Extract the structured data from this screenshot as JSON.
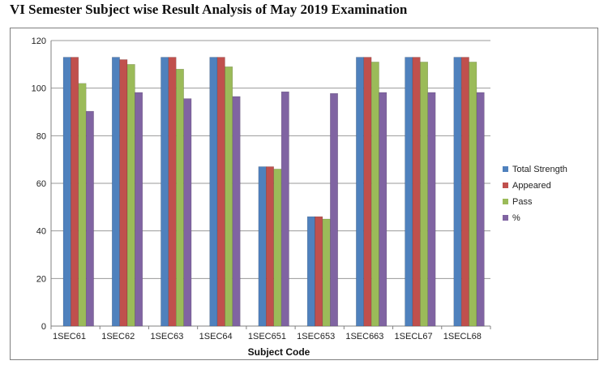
{
  "title": "VI Semester Subject wise Result Analysis of May 2019 Examination",
  "chart_data": {
    "type": "bar",
    "xlabel": "Subject Code",
    "ylabel": "",
    "ylim": [
      0,
      120
    ],
    "yticks": [
      0,
      20,
      40,
      60,
      80,
      100,
      120
    ],
    "grid": true,
    "legend_position": "right",
    "categories": [
      "1SEC61",
      "1SEC62",
      "1SEC63",
      "1SEC64",
      "1SEC651",
      "1SEC653",
      "1SEC663",
      "1SECL67",
      "1SECL68"
    ],
    "series": [
      {
        "name": "Total Strength",
        "color": "#4f81bd",
        "values": [
          113,
          113,
          113,
          113,
          67,
          46,
          113,
          113,
          113
        ]
      },
      {
        "name": "Appeared",
        "color": "#c0504d",
        "values": [
          113,
          112,
          113,
          113,
          67,
          46,
          113,
          113,
          113
        ]
      },
      {
        "name": "Pass",
        "color": "#9bbb59",
        "values": [
          102,
          110,
          108,
          109,
          66,
          45,
          111,
          111,
          111
        ]
      },
      {
        "name": "%",
        "color": "#8064a2",
        "values": [
          90.3,
          98.2,
          95.6,
          96.5,
          98.5,
          97.8,
          98.2,
          98.2,
          98.2
        ]
      }
    ]
  }
}
